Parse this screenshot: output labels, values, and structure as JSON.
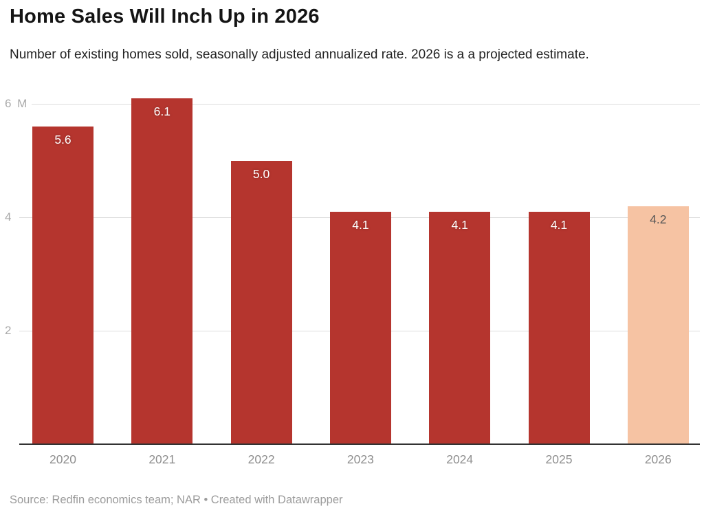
{
  "header": {
    "title": "Home Sales Will Inch Up in 2026",
    "subtitle": "Number of existing homes sold, seasonally adjusted annualized rate. 2026 is a a projected estimate."
  },
  "chart_data": {
    "type": "bar",
    "categories": [
      "2020",
      "2021",
      "2022",
      "2023",
      "2024",
      "2025",
      "2026"
    ],
    "values": [
      5.6,
      6.1,
      5.0,
      4.1,
      4.1,
      4.1,
      4.2
    ],
    "value_labels": [
      "5.6",
      "6.1",
      "5.0",
      "4.1",
      "4.1",
      "4.1",
      "4.2"
    ],
    "title": "Home Sales Will Inch Up in 2026",
    "subtitle": "Number of existing homes sold, seasonally adjusted annualized rate. 2026 is a a projected estimate.",
    "xlabel": "",
    "ylabel": "",
    "unit": "M",
    "ylim": [
      0,
      6.13
    ],
    "yticks": [
      {
        "value": 2,
        "label": "2"
      },
      {
        "value": 4,
        "label": "4"
      },
      {
        "value": 6,
        "label": "6 M"
      }
    ],
    "grid": "horizontal",
    "legend": "none",
    "highlight_index": 6,
    "colors": {
      "bar": "#b5352e",
      "highlight_bar": "#f6c3a3",
      "value_label_on_bar": "#ffffff",
      "value_label_on_highlight": "#565656",
      "gridline": "#dcdcdc",
      "baseline": "#333333",
      "axis_text": "#8f8f8f"
    }
  },
  "footer": {
    "source": "Source: Redfin economics team; NAR • Created with Datawrapper"
  }
}
